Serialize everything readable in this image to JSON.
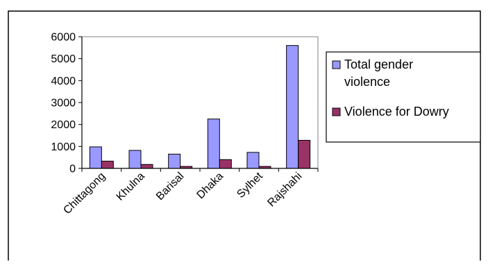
{
  "chart_data": {
    "type": "bar",
    "title": "",
    "xlabel": "",
    "ylabel": "",
    "categories": [
      "Chittagong",
      "Khulna",
      "Barisal",
      "Dhaka",
      "Sylhet",
      "Rajshahi"
    ],
    "series": [
      {
        "name": "Total gender violence",
        "values": [
          980,
          820,
          650,
          2250,
          730,
          5600
        ],
        "color": "#9999ff"
      },
      {
        "name": "Violence for Dowry",
        "values": [
          330,
          180,
          90,
          400,
          90,
          1280
        ],
        "color": "#993366"
      }
    ],
    "ylim": [
      0,
      6000
    ],
    "yticks": [
      "0",
      "1000",
      "2000",
      "3000",
      "4000",
      "5000",
      "6000"
    ],
    "grid": false,
    "legend": {
      "placement": "right",
      "entries": [
        {
          "lines": [
            "Total gender",
            "violence"
          ],
          "color": "#9999ff"
        },
        {
          "lines": [
            "Violence for Dowry"
          ],
          "color": "#993366"
        }
      ]
    }
  }
}
